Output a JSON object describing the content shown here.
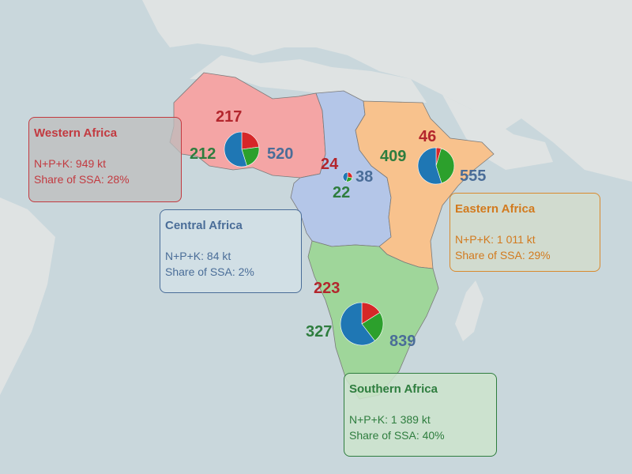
{
  "colors": {
    "ocean": "#c9d7dc",
    "land": "#dfe3e3",
    "western": "#f4a5a5",
    "central": "#b4c6e8",
    "eastern": "#f8c28d",
    "southern": "#9fd69a",
    "pie_red": "#d62728",
    "pie_green": "#2ca02c",
    "pie_blue": "#1f77b4"
  },
  "regions": [
    {
      "id": "western",
      "name": "Western Africa",
      "total_line": "N+P+K: 949 kt",
      "share_line": "Share of SSA: 28%",
      "values": {
        "red": "217",
        "green": "212",
        "blue": "520"
      },
      "pie": [
        217,
        212,
        520
      ]
    },
    {
      "id": "central",
      "name": "Central Africa",
      "total_line": "N+P+K: 84 kt",
      "share_line": "Share of SSA: 2%",
      "values": {
        "red": "24",
        "green": "22",
        "blue": "38"
      },
      "pie": [
        24,
        22,
        38
      ]
    },
    {
      "id": "eastern",
      "name": "Eastern Africa",
      "total_line": "N+P+K: 1 011 kt",
      "share_line": "Share of SSA: 29%",
      "values": {
        "red": "46",
        "green": "409",
        "blue": "555"
      },
      "pie": [
        46,
        409,
        555
      ]
    },
    {
      "id": "southern",
      "name": "Southern Africa",
      "total_line": "N+P+K: 1 389 kt",
      "share_line": "Share of SSA: 40%",
      "values": {
        "red": "223",
        "green": "327",
        "blue": "839"
      },
      "pie": [
        223,
        327,
        839
      ]
    }
  ]
}
